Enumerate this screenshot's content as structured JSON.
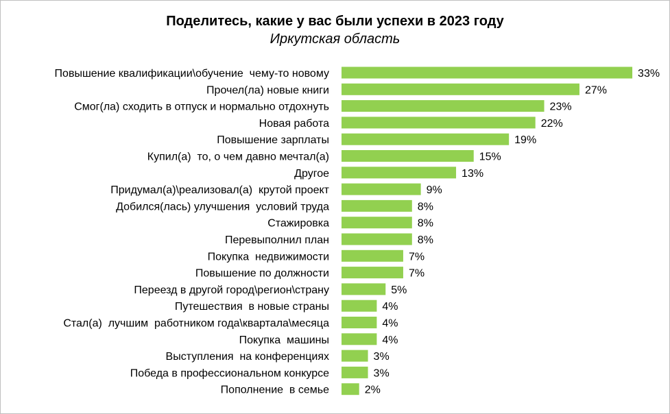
{
  "chart_data": {
    "type": "bar",
    "orientation": "horizontal",
    "title": "Поделитесь, какие у вас были успехи в 2023 году",
    "subtitle": "Иркутская область",
    "xlabel": "",
    "ylabel": "",
    "value_suffix": "%",
    "xlim": [
      0,
      35
    ],
    "grid": false,
    "legend": "none",
    "bar_color": "#92d050",
    "categories": [
      "Повышение квалификации\\обучение  чему-то новому",
      "Прочел(ла) новые книги",
      "Смог(ла) сходить в отпуск и нормально отдохнуть",
      "Новая работа",
      "Повышение зарплаты",
      "Купил(а)  то, о чем давно мечтал(а)",
      "Другое",
      "Придумал(а)\\реализовал(а)  крутой проект",
      "Добился(лась) улучшения  условий труда",
      "Стажировка",
      "Перевыполнил план",
      "Покупка  недвижимости",
      "Повышение по должности",
      "Переезд в другой город\\регион\\страну",
      "Путешествия  в новые страны",
      "Стал(а)  лучшим  работником года\\квартала\\месяца",
      "Покупка  машины",
      "Выступления  на конференциях",
      "Победа в профессиональном конкурсе",
      "Пополнение  в семье"
    ],
    "values": [
      33,
      27,
      23,
      22,
      19,
      15,
      13,
      9,
      8,
      8,
      8,
      7,
      7,
      5,
      4,
      4,
      4,
      3,
      3,
      2
    ]
  }
}
